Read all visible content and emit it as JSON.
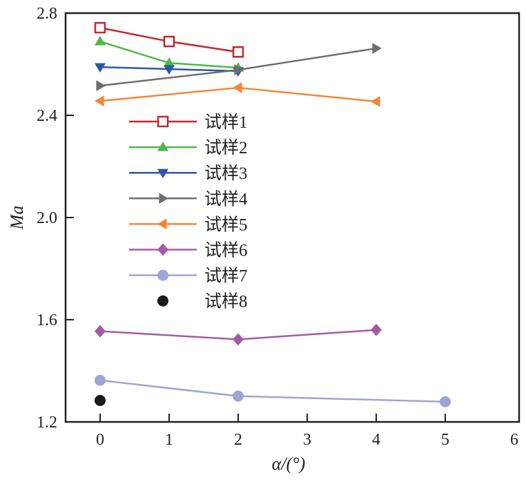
{
  "chart_data": {
    "type": "line",
    "title": "",
    "xlabel": "α/(°)",
    "ylabel": "Ma",
    "xlim": [
      -0.5,
      6.07
    ],
    "ylim": [
      1.2,
      2.8
    ],
    "xticks": [
      0,
      1,
      2,
      3,
      4,
      5,
      6
    ],
    "xtick_labels": [
      "0",
      "1",
      "2",
      "3",
      "4",
      "5",
      "6"
    ],
    "yticks": [
      1.2,
      1.6,
      2.0,
      2.4,
      2.8
    ],
    "ytick_labels": [
      "1.2",
      "1.6",
      "2.0",
      "2.4",
      "2.8"
    ],
    "grid": false,
    "legend_position": "left-center",
    "series": [
      {
        "name": "试样1",
        "color": "#c1272d",
        "marker": "square-open",
        "x": [
          0,
          1,
          2
        ],
        "y": [
          2.743,
          2.689,
          2.648
        ]
      },
      {
        "name": "试样2",
        "color": "#4cb848",
        "marker": "triangle-up",
        "x": [
          0,
          1,
          2
        ],
        "y": [
          2.689,
          2.605,
          2.586
        ]
      },
      {
        "name": "试样3",
        "color": "#2e56a6",
        "marker": "triangle-down",
        "x": [
          0,
          1,
          2
        ],
        "y": [
          2.589,
          2.581,
          2.573
        ]
      },
      {
        "name": "试样4",
        "color": "#6d6e71",
        "marker": "triangle-right",
        "x": [
          0,
          2,
          4
        ],
        "y": [
          2.516,
          2.578,
          2.662
        ]
      },
      {
        "name": "试样5",
        "color": "#f58634",
        "marker": "triangle-left",
        "x": [
          0,
          2,
          4
        ],
        "y": [
          2.456,
          2.508,
          2.454
        ]
      },
      {
        "name": "试样6",
        "color": "#a45aa5",
        "marker": "diamond",
        "x": [
          0,
          2,
          4
        ],
        "y": [
          1.555,
          1.523,
          1.56
        ]
      },
      {
        "name": "试样7",
        "color": "#9da5d6",
        "marker": "circle",
        "x": [
          0,
          2,
          5
        ],
        "y": [
          1.363,
          1.301,
          1.279
        ]
      },
      {
        "name": "试样8",
        "color": "#1a1a1a",
        "marker": "circle",
        "line": false,
        "x": [
          0
        ],
        "y": [
          1.284
        ]
      }
    ]
  }
}
